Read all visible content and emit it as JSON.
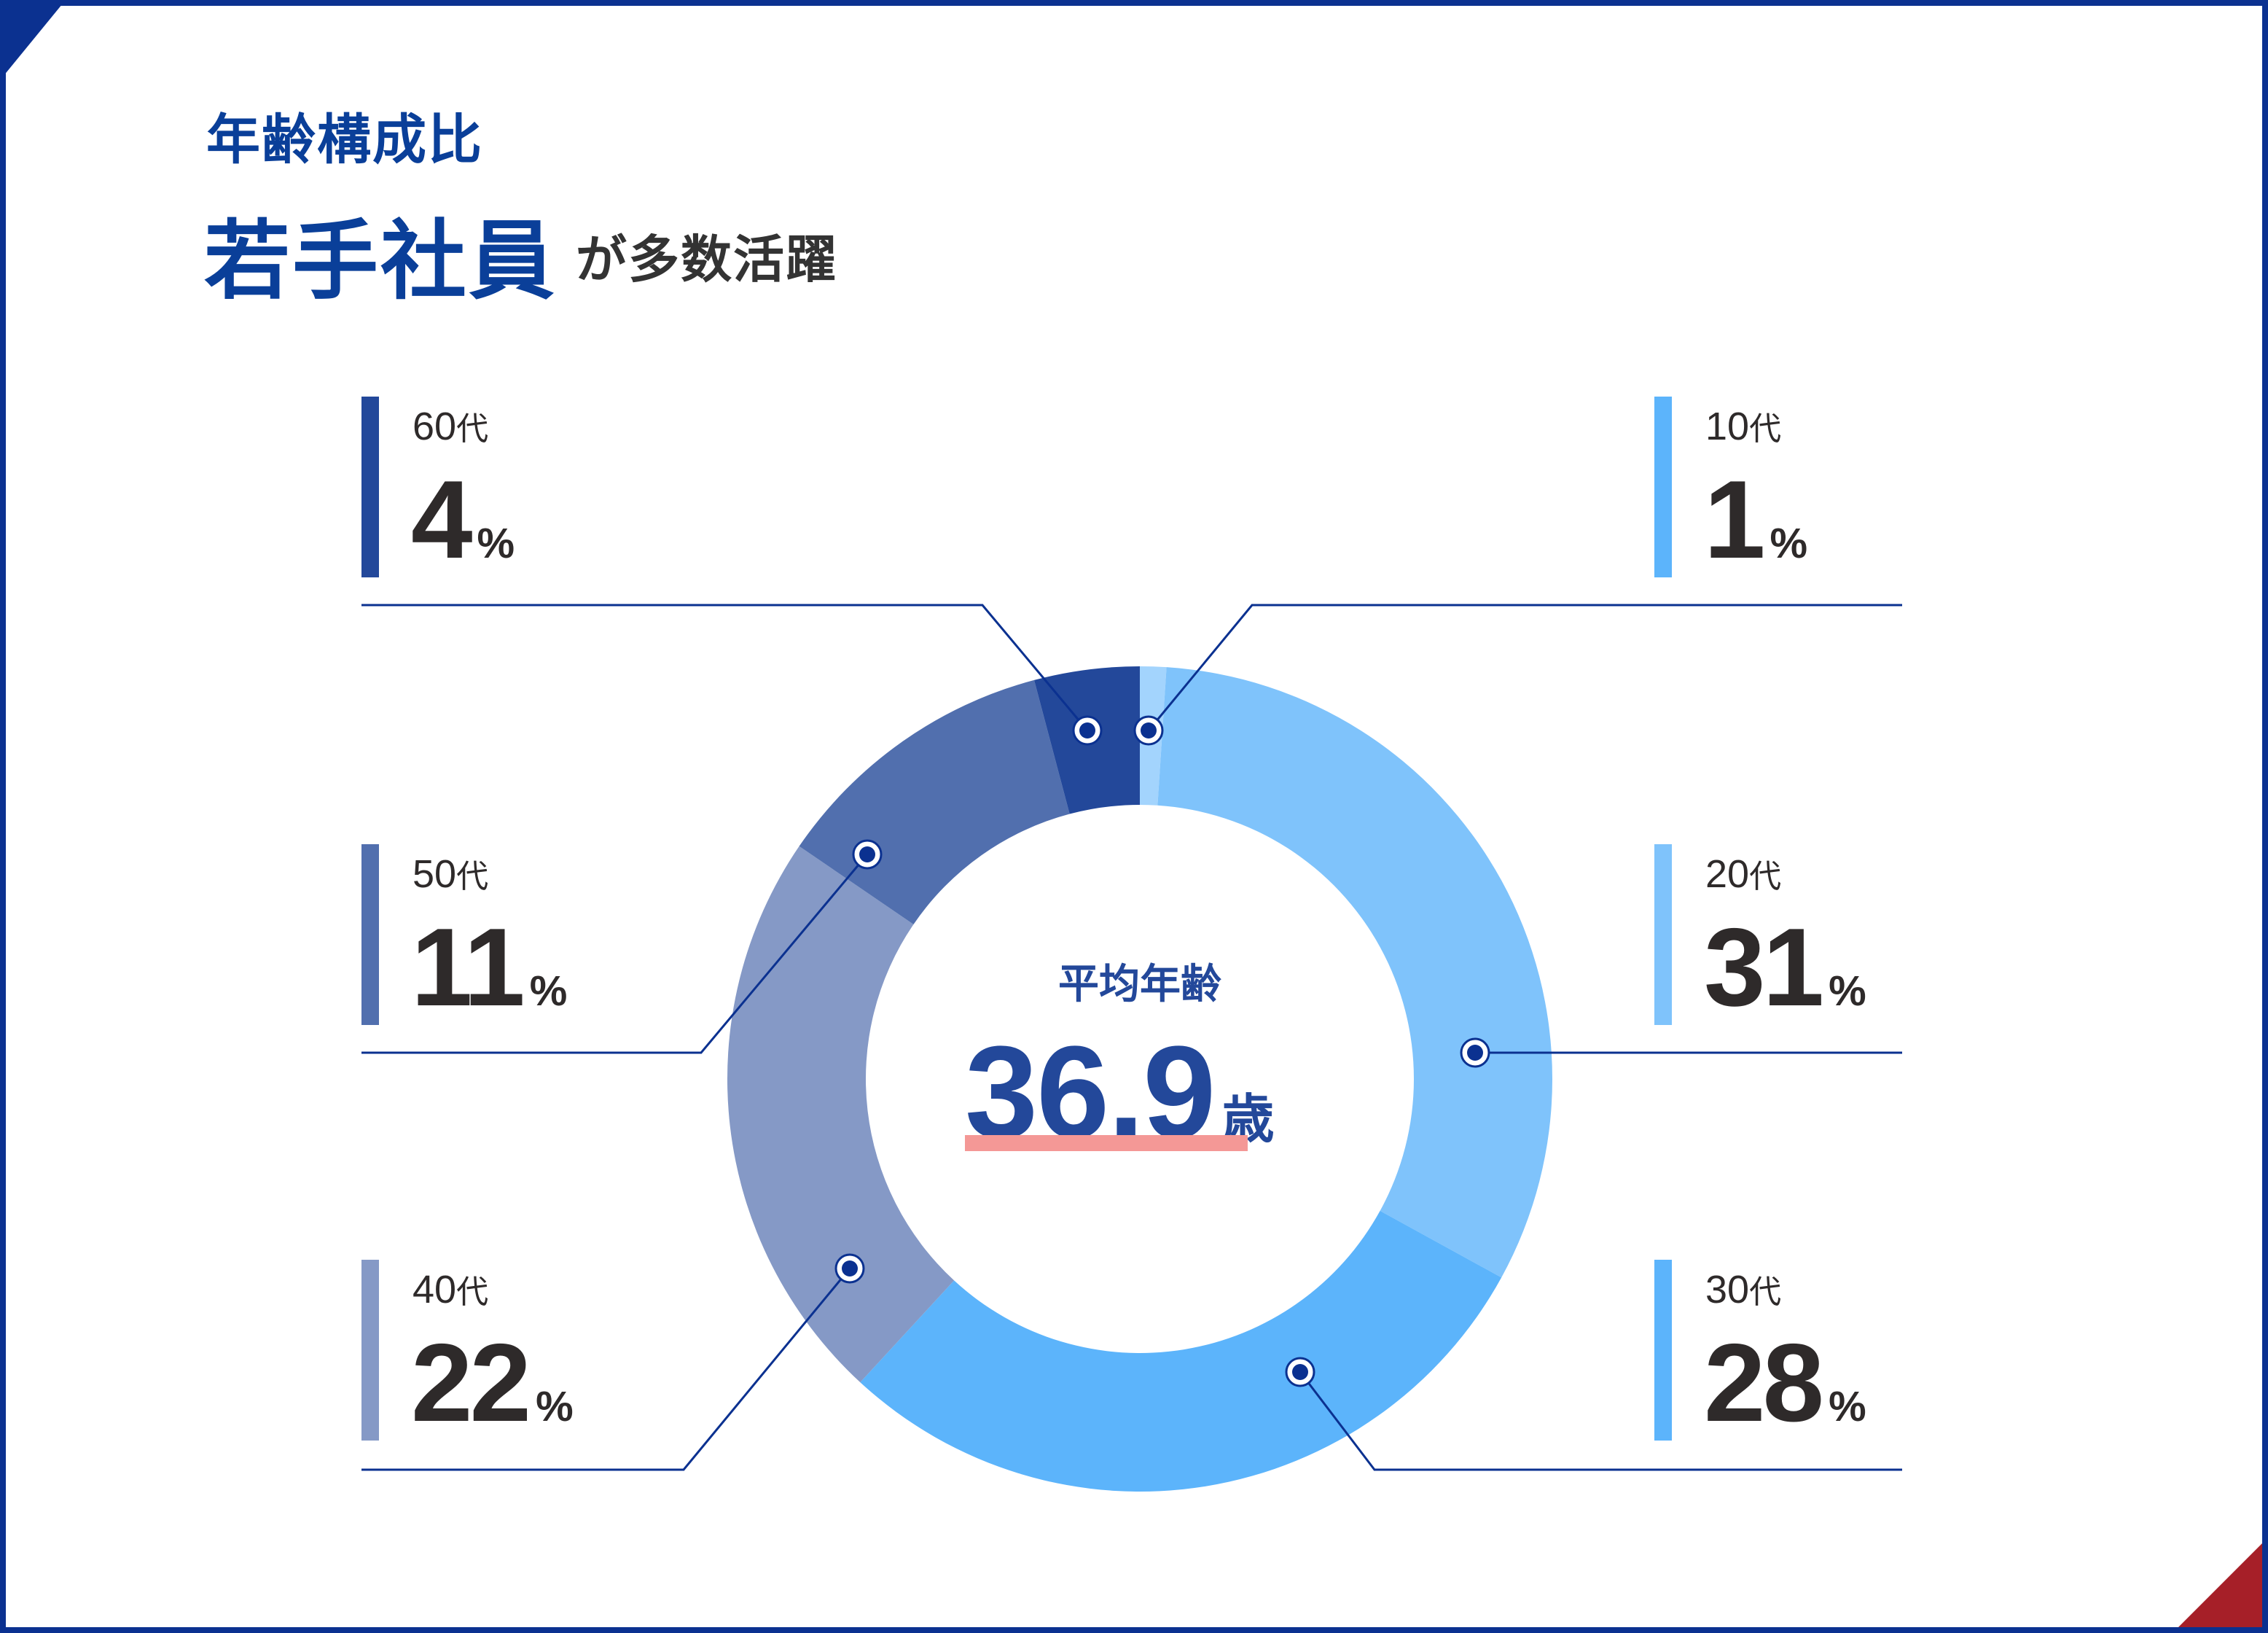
{
  "header": {
    "title_small": "年齢構成比",
    "title_big": "若手社員",
    "title_rest": "が多数活躍"
  },
  "center": {
    "label": "平均年齢",
    "value": "36.9",
    "unit": "歳",
    "underline_color": "#f49896"
  },
  "labels": [
    {
      "category": "60",
      "suffix": "代",
      "value": "4",
      "pct": "%",
      "color": "#23489a"
    },
    {
      "category": "50",
      "suffix": "代",
      "value": "11",
      "pct": "%",
      "color": "#516fae"
    },
    {
      "category": "40",
      "suffix": "代",
      "value": "22",
      "pct": "%",
      "color": "#8599c6"
    },
    {
      "category": "10",
      "suffix": "代",
      "value": "1",
      "pct": "%",
      "color": "#5cb4fb"
    },
    {
      "category": "20",
      "suffix": "代",
      "value": "31",
      "pct": "%",
      "color": "#7fc3fb"
    },
    {
      "category": "30",
      "suffix": "代",
      "value": "28",
      "pct": "%",
      "color": "#5cb4fb"
    }
  ],
  "chart_data": {
    "type": "pie",
    "subtype": "donut",
    "title": "年齢構成比 若手社員が多数活躍",
    "categories": [
      "10代",
      "20代",
      "30代",
      "40代",
      "50代",
      "60代"
    ],
    "values": [
      1,
      31,
      28,
      22,
      11,
      4
    ],
    "unit": "%",
    "colors": [
      "#a3d4fd",
      "#7fc3fb",
      "#5cb4fb",
      "#8599c6",
      "#516fae",
      "#23489a"
    ],
    "center_annotation": {
      "label": "平均年齢",
      "value": 36.9,
      "unit": "歳"
    },
    "start_angle": "top",
    "direction": "clockwise"
  },
  "colors": {
    "frame": "#0b3190",
    "accent_red": "#a61f28",
    "title_blue": "#0a3f99",
    "leader_line": "#0b3190"
  }
}
